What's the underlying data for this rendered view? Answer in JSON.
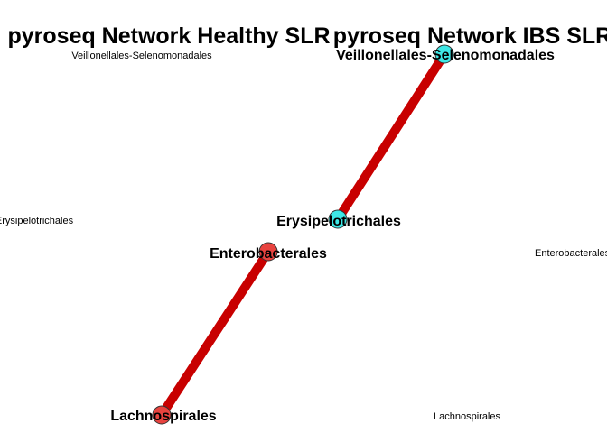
{
  "panels": [
    {
      "title": "pyroseq Network Healthy SLR",
      "active_node_color": "#e8433f",
      "edge_color": "#c80000",
      "nodes": [
        {
          "label": "Veillonellales-Selenomonadales",
          "active": false
        },
        {
          "label": "Erysipelotrichales",
          "active": false
        },
        {
          "label": "Enterobacterales",
          "active": true
        },
        {
          "label": "Lachnospirales",
          "active": true
        }
      ],
      "edges": [
        {
          "from": "Enterobacterales",
          "to": "Lachnospirales"
        }
      ]
    },
    {
      "title": "pyroseq Network IBS SLR",
      "active_node_color": "#3ee8e6",
      "edge_color": "#c80000",
      "nodes": [
        {
          "label": "Veillonellales-Selenomonadales",
          "active": true
        },
        {
          "label": "Erysipelotrichales",
          "active": true
        },
        {
          "label": "Enterobacterales",
          "active": false
        },
        {
          "label": "Lachnospirales",
          "active": false
        }
      ],
      "edges": [
        {
          "from": "Veillonellales-Selenomonadales",
          "to": "Erysipelotrichales"
        }
      ]
    }
  ]
}
